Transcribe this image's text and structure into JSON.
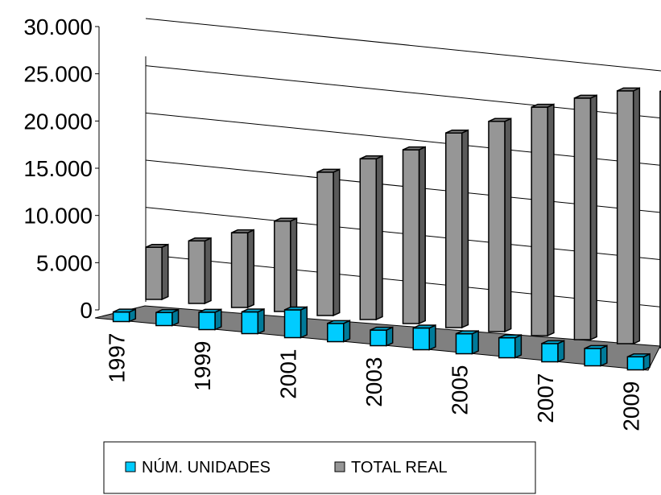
{
  "chart_data": {
    "type": "bar",
    "title": "",
    "xlabel": "",
    "ylabel": "",
    "categories": [
      "1997",
      "1998",
      "1999",
      "2000",
      "2001",
      "2002",
      "2003",
      "2004",
      "2005",
      "2006",
      "2007",
      "2008",
      "2009"
    ],
    "x_tick_labels": [
      "1997",
      "",
      "1999",
      "",
      "2001",
      "",
      "2003",
      "",
      "2005",
      "",
      "2007",
      "",
      "2009"
    ],
    "y_tick_labels": [
      "0",
      "5.000",
      "10.000",
      "15.000",
      "20.000",
      "25.000",
      "30.000"
    ],
    "ylim": [
      0,
      30000
    ],
    "grid": true,
    "legend_position": "bottom",
    "series": [
      {
        "name": "NÚM. UNIDADES",
        "color": "#00ccff",
        "values": [
          1100,
          1500,
          2000,
          2500,
          3200,
          2100,
          1800,
          2500,
          2300,
          2300,
          2100,
          2000,
          1500
        ]
      },
      {
        "name": "TOTAL REAL",
        "color": "#969696",
        "values": [
          6000,
          7200,
          8600,
          10400,
          16500,
          18500,
          20000,
          22400,
          24200,
          26300,
          27800,
          29100,
          29500
        ]
      }
    ]
  }
}
